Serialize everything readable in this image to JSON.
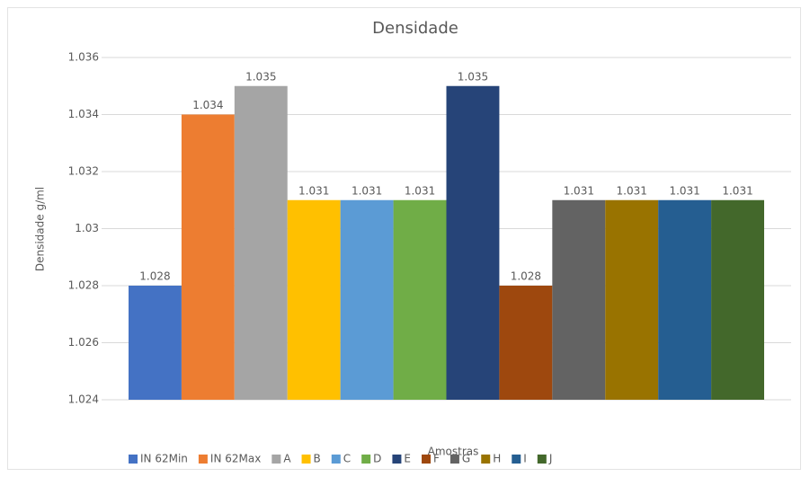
{
  "chart_data": {
    "type": "bar",
    "title": "Densidade",
    "x_label": "Amostras",
    "y_label": "Densidade g/ml",
    "categories": [
      null
    ],
    "series": [
      {
        "name": "IN 62Min",
        "color": "#4472c4",
        "values": [
          1.028
        ]
      },
      {
        "name": "IN 62Max",
        "color": "#ed7d31",
        "values": [
          1.034
        ]
      },
      {
        "name": "A",
        "color": "#a5a5a5",
        "values": [
          1.035
        ]
      },
      {
        "name": "B",
        "color": "#ffc000",
        "values": [
          1.031
        ]
      },
      {
        "name": "C",
        "color": "#5b9bd5",
        "values": [
          1.031
        ]
      },
      {
        "name": "D",
        "color": "#70ad47",
        "values": [
          1.031
        ]
      },
      {
        "name": "E",
        "color": "#264478",
        "values": [
          1.035
        ]
      },
      {
        "name": "F",
        "color": "#9e480e",
        "values": [
          1.028
        ]
      },
      {
        "name": "G",
        "color": "#636363",
        "values": [
          1.031
        ]
      },
      {
        "name": "H",
        "color": "#997300",
        "values": [
          1.031
        ]
      },
      {
        "name": "I",
        "color": "#255e91",
        "values": [
          1.031
        ]
      },
      {
        "name": "J",
        "color": "#43682b",
        "values": [
          1.031
        ]
      }
    ],
    "ylim": [
      1.024,
      1.036
    ],
    "yticks": [
      1.024,
      1.026,
      1.028,
      1.03,
      1.032,
      1.034,
      1.036
    ],
    "grid": true,
    "legend": "bottom"
  }
}
